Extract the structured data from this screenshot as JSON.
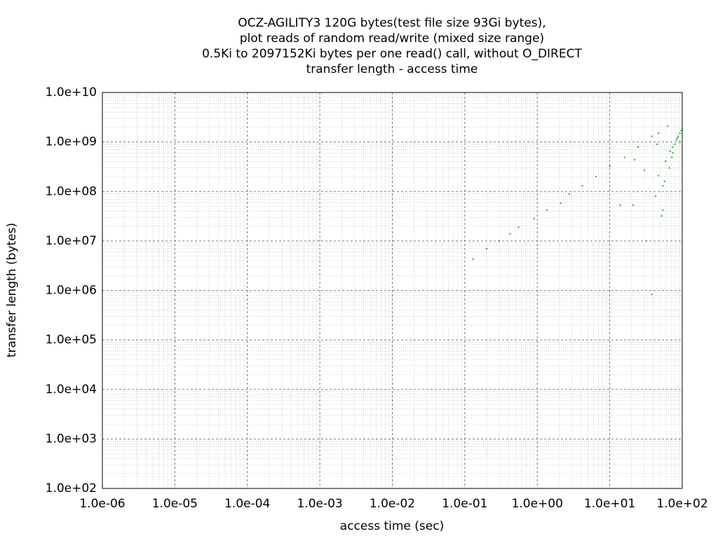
{
  "chart_data": {
    "type": "scatter",
    "title": [
      "OCZ-AGILITY3 120G bytes(test file size 93Gi bytes),",
      "plot reads of random read/write (mixed size range)",
      "0.5Ki to 2097152Ki bytes per one read() call, without O_DIRECT",
      "transfer length - access time"
    ],
    "x_label": "access time (sec)",
    "y_label": "transfer length (bytes)",
    "log_x": true,
    "log_y": true,
    "grid": true,
    "color": "#00c000",
    "xlim": [
      1e-06,
      100
    ],
    "ylim": [
      100,
      10000000000
    ],
    "xticks": [
      {
        "value": 1e-06,
        "label": "1.0e-06"
      },
      {
        "value": 1e-05,
        "label": "1.0e-05"
      },
      {
        "value": 0.0001,
        "label": "1.0e-04"
      },
      {
        "value": 0.001,
        "label": "1.0e-03"
      },
      {
        "value": 0.01,
        "label": "1.0e-02"
      },
      {
        "value": 0.1,
        "label": "1.0e-01"
      },
      {
        "value": 1,
        "label": "1.0e+00"
      },
      {
        "value": 10,
        "label": "1.0e+01"
      },
      {
        "value": 100,
        "label": "1.0e+02"
      }
    ],
    "yticks": [
      {
        "value": 100,
        "label": "1.0e+02"
      },
      {
        "value": 1000,
        "label": "1.0e+03"
      },
      {
        "value": 10000,
        "label": "1.0e+04"
      },
      {
        "value": 100000,
        "label": "1.0e+05"
      },
      {
        "value": 1000000,
        "label": "1.0e+06"
      },
      {
        "value": 10000000,
        "label": "1.0e+07"
      },
      {
        "value": 100000000,
        "label": "1.0e+08"
      },
      {
        "value": 1000000000,
        "label": "1.0e+09"
      },
      {
        "value": 10000000000,
        "label": "1.0e+10"
      }
    ],
    "x": [
      0.13,
      0.2,
      0.3,
      0.42,
      0.55,
      0.91,
      1.35,
      2.1,
      2.75,
      4.2,
      6.5,
      10,
      16,
      24.5,
      38,
      63,
      47,
      74,
      93,
      14,
      21,
      32,
      38,
      54,
      47,
      59,
      43,
      22,
      30,
      74,
      83,
      93,
      100,
      72,
      54,
      52,
      66,
      88,
      97,
      79,
      45,
      57,
      68,
      85
    ],
    "values": [
      4300000,
      7000000,
      10000000,
      14000000,
      19000000,
      28000000,
      42000000,
      58000000,
      89000000,
      130000000,
      200000000,
      320000000,
      490000000,
      790000000,
      1300000000,
      2100000000,
      1500000000,
      600000000,
      1000000000,
      53000000,
      53000000,
      10000000,
      830000,
      42000000,
      210000000,
      410000000,
      80000000,
      440000000,
      270000000,
      790000000,
      1100000000,
      1500000000,
      1900000000,
      490000000,
      130000000,
      32000000,
      300000000,
      1300000000,
      1700000000,
      900000000,
      900000000,
      160000000,
      650000000,
      1200000000
    ]
  }
}
